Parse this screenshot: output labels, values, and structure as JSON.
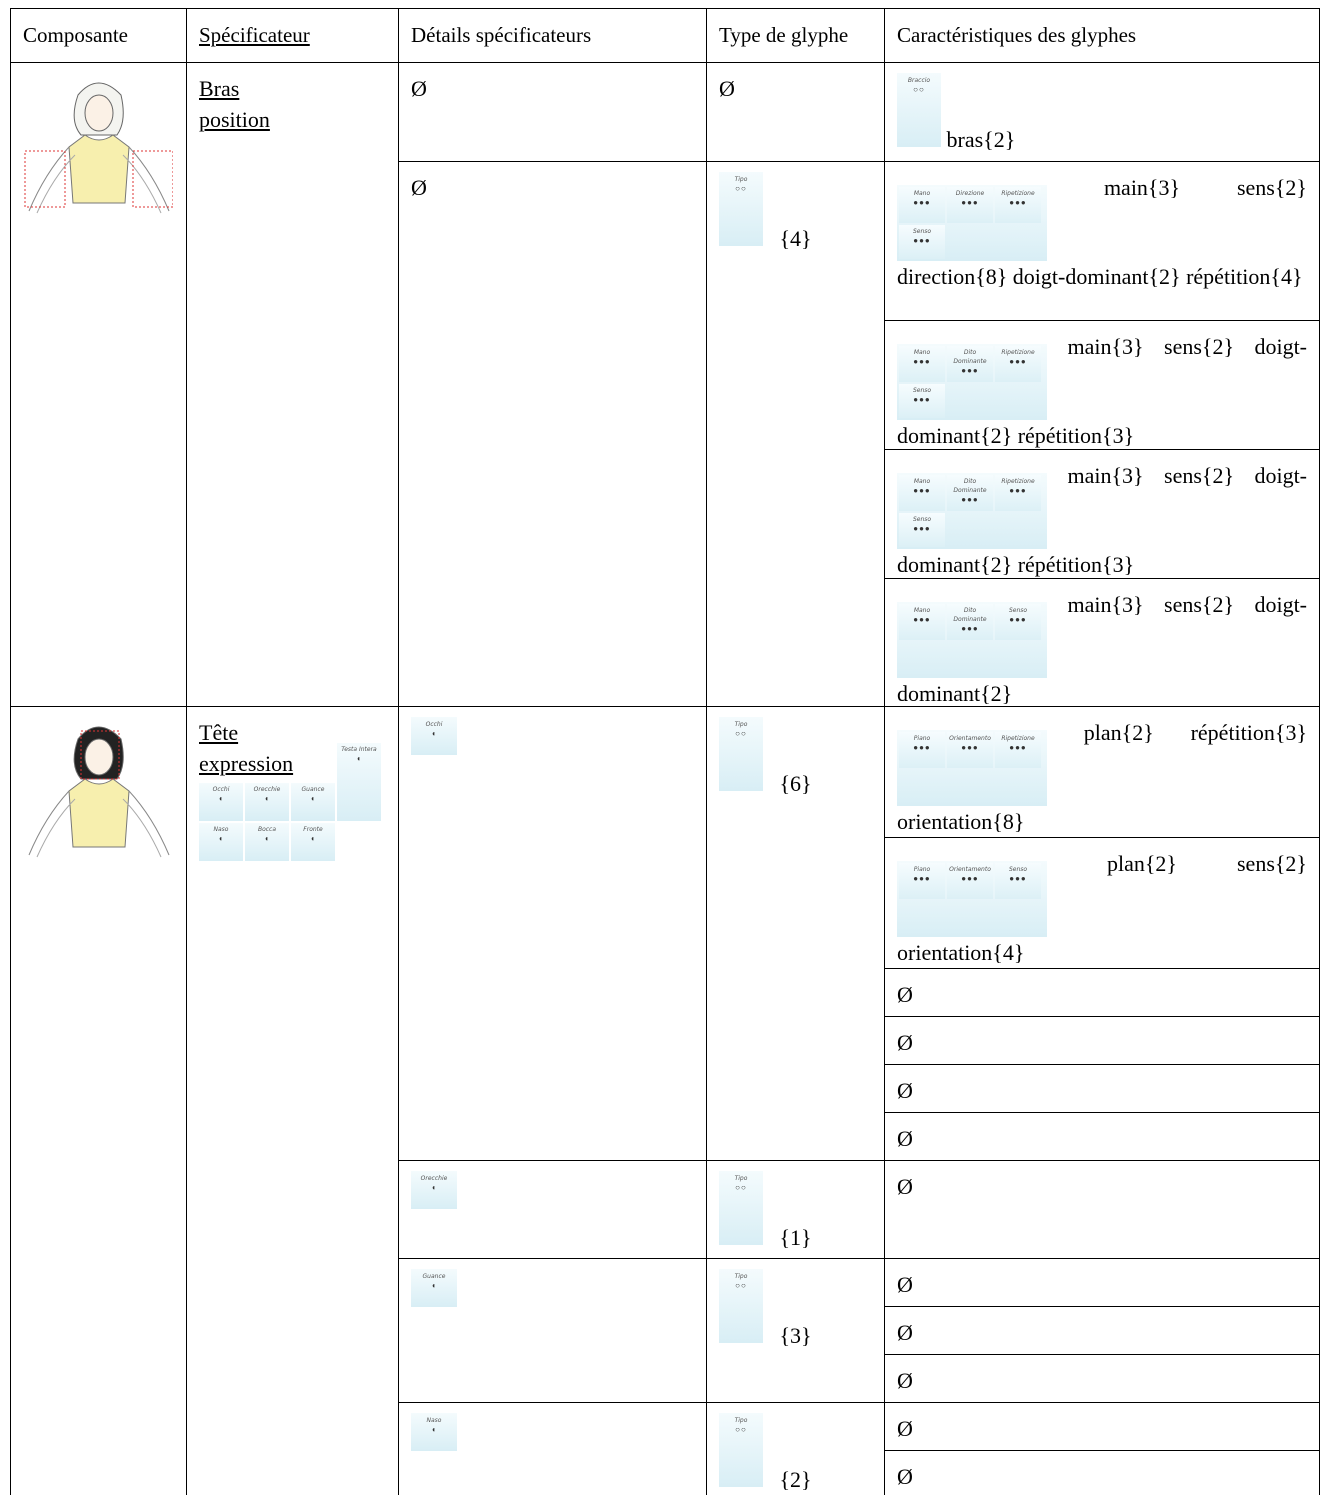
{
  "header": [
    "Composante",
    "Spécificateur",
    "Détails spécificateurs",
    "Type de glyphe",
    "Caractéristiques des glyphes"
  ],
  "bras": {
    "specifier": "Bras position",
    "details": [
      "Ø",
      "Ø"
    ],
    "glyph_type": [
      "Ø",
      {
        "thumb": [
          "Tipo"
        ],
        "count": "{4}"
      }
    ],
    "characteristics": [
      {
        "thumb": [
          "Braccio"
        ],
        "text": "bras{2}"
      },
      {
        "thumb": [
          "Mano",
          "Direzione",
          "Ripetizione",
          "Senso"
        ],
        "text": "main{3} sens{2} direction{8} doigt-dominant{2} répétition{4}"
      },
      {
        "thumb": [
          "Mano",
          "Dito Dominante",
          "Ripetizione",
          "Senso"
        ],
        "text": "main{3} sens{2} doigt-dominant{2} répétition{3}"
      },
      {
        "thumb": [
          "Mano",
          "Dito Dominante",
          "Ripetizione",
          "Senso"
        ],
        "text": "main{3} sens{2} doigt-dominant{2} répétition{3}"
      },
      {
        "thumb": [
          "Mano",
          "Dito Dominante",
          "Senso"
        ],
        "text": "main{3} sens{2} doigt-dominant{2}"
      }
    ]
  },
  "tete": {
    "specifier": "Tête expression",
    "specifier_thumbs": [
      "Occhi",
      "Orecchie",
      "Guance",
      "Testa Intera",
      "Naso",
      "Bocca",
      "Fronte"
    ],
    "details": [
      {
        "thumb": [
          "Occhi"
        ]
      },
      {
        "thumb": [
          "Orecchie"
        ]
      },
      {
        "thumb": [
          "Guance"
        ]
      },
      {
        "thumb": [
          "Naso"
        ]
      }
    ],
    "glyph_type": [
      {
        "thumb": [
          "Tipo"
        ],
        "count": "{6}"
      },
      {
        "thumb": [
          "Tipo"
        ],
        "count": "{1}"
      },
      {
        "thumb": [
          "Tipo"
        ],
        "count": "{3}"
      },
      {
        "thumb": [
          "Tipo"
        ],
        "count": "{2}"
      }
    ],
    "characteristics": [
      {
        "thumb": [
          "Piano",
          "Orientamento",
          "Ripetizione"
        ],
        "text": "plan{2} répétition{3} orientation{8}"
      },
      {
        "thumb": [
          "Piano",
          "Orientamento",
          "Senso"
        ],
        "text": "plan{2} sens{2} orientation{4}"
      },
      "Ø",
      "Ø",
      "Ø",
      "Ø",
      "Ø",
      "Ø",
      "Ø",
      "Ø",
      "Ø",
      "Ø"
    ]
  }
}
